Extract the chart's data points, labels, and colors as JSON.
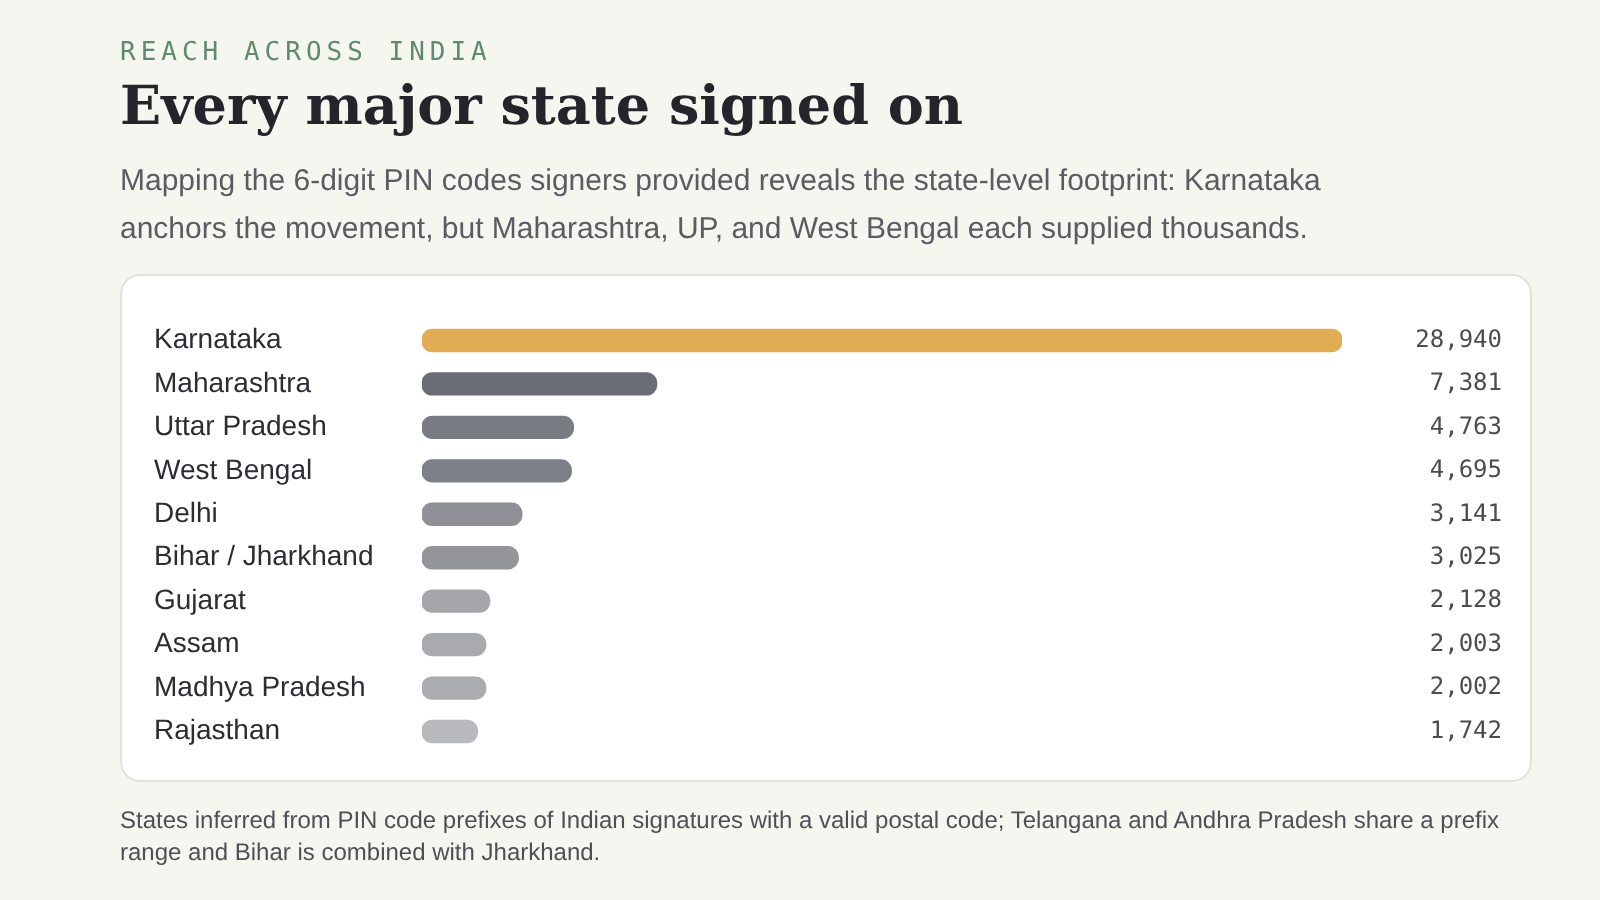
{
  "chart_data": {
    "type": "bar",
    "orientation": "horizontal",
    "title": "Every major state signed on",
    "subtitle": "Mapping the 6-digit PIN codes signers provided reveals the state-level footprint: Karnataka anchors the movement, but Maharashtra, UP, and West Bengal each supplied thousands.",
    "annotations": [
      "REACH ACROSS INDIA",
      "States inferred from PIN code prefixes of Indian signatures with a valid postal code; Telangana and Andhra Pradesh share a prefix range and Bihar is combined with Jharkhand."
    ],
    "categories": [
      "Karnataka",
      "Maharashtra",
      "Uttar Pradesh",
      "West Bengal",
      "Delhi",
      "Bihar / Jharkhand",
      "Gujarat",
      "Assam",
      "Madhya Pradesh",
      "Rajasthan"
    ],
    "values": [
      28940,
      7381,
      4763,
      4695,
      3141,
      3025,
      2128,
      2003,
      2002,
      1742
    ],
    "colors": [
      "#e0ad55",
      "#6b6d75",
      "#7a7c83",
      "#7e8087",
      "#8e9095",
      "#939599",
      "#a6a7ab",
      "#a9aaae",
      "#abacb0",
      "#b8b9bd"
    ],
    "value_labels": [
      "28,940",
      "7,381",
      "4,763",
      "4,695",
      "3,141",
      "3,025",
      "2,128",
      "2,003",
      "2,002",
      "1,742"
    ],
    "grid": false,
    "legend": false
  }
}
